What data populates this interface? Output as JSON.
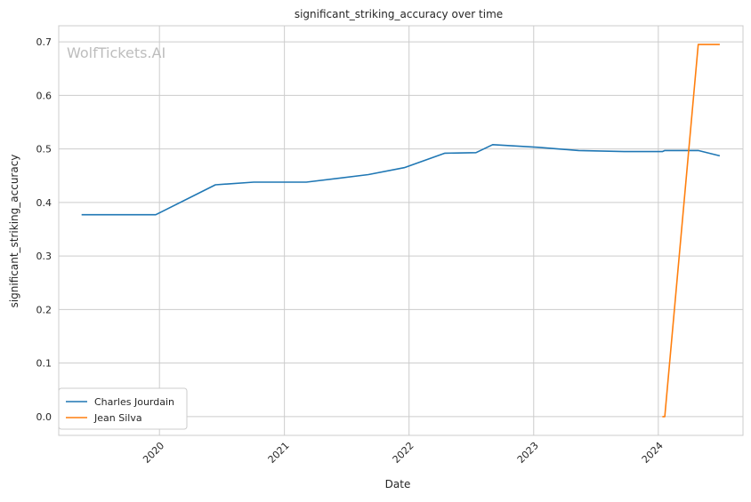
{
  "chart_data": {
    "type": "line",
    "title": "significant_striking_accuracy over time",
    "xlabel": "Date",
    "ylabel": "significant_striking_accuracy",
    "watermark": "WolfTickets.AI",
    "xlim": [
      "2019-03-12",
      "2024-09-05"
    ],
    "ylim": [
      -0.035,
      0.73
    ],
    "x_ticks": [
      "2020-01-01",
      "2021-01-01",
      "2022-01-01",
      "2023-01-01",
      "2024-01-01"
    ],
    "x_tick_labels": [
      "2020",
      "2021",
      "2022",
      "2023",
      "2024"
    ],
    "y_ticks": [
      0.0,
      0.1,
      0.2,
      0.3,
      0.4,
      0.5,
      0.6,
      0.7
    ],
    "y_tick_labels": [
      "0.0",
      "0.1",
      "0.2",
      "0.3",
      "0.4",
      "0.5",
      "0.6",
      "0.7"
    ],
    "grid": true,
    "legend_position": "lower-left",
    "series": [
      {
        "name": "Charles Jourdain",
        "color": "#1f77b4",
        "x": [
          "2019-05-18",
          "2019-12-21",
          "2020-06-13",
          "2020-10-03",
          "2021-03-06",
          "2021-09-04",
          "2021-12-18",
          "2022-04-16",
          "2022-07-16",
          "2022-09-03",
          "2023-01-14",
          "2023-05-13",
          "2023-09-23",
          "2024-01-13",
          "2024-01-20",
          "2024-04-27",
          "2024-06-29"
        ],
        "values": [
          0.377,
          0.377,
          0.433,
          0.438,
          0.438,
          0.452,
          0.465,
          0.492,
          0.493,
          0.508,
          0.503,
          0.497,
          0.495,
          0.495,
          0.497,
          0.497,
          0.487
        ]
      },
      {
        "name": "Jean Silva",
        "color": "#ff7f0e",
        "x": [
          "2024-01-13",
          "2024-01-20",
          "2024-04-27",
          "2024-06-29"
        ],
        "values": [
          0.0,
          0.0,
          0.695,
          0.695
        ]
      }
    ]
  }
}
